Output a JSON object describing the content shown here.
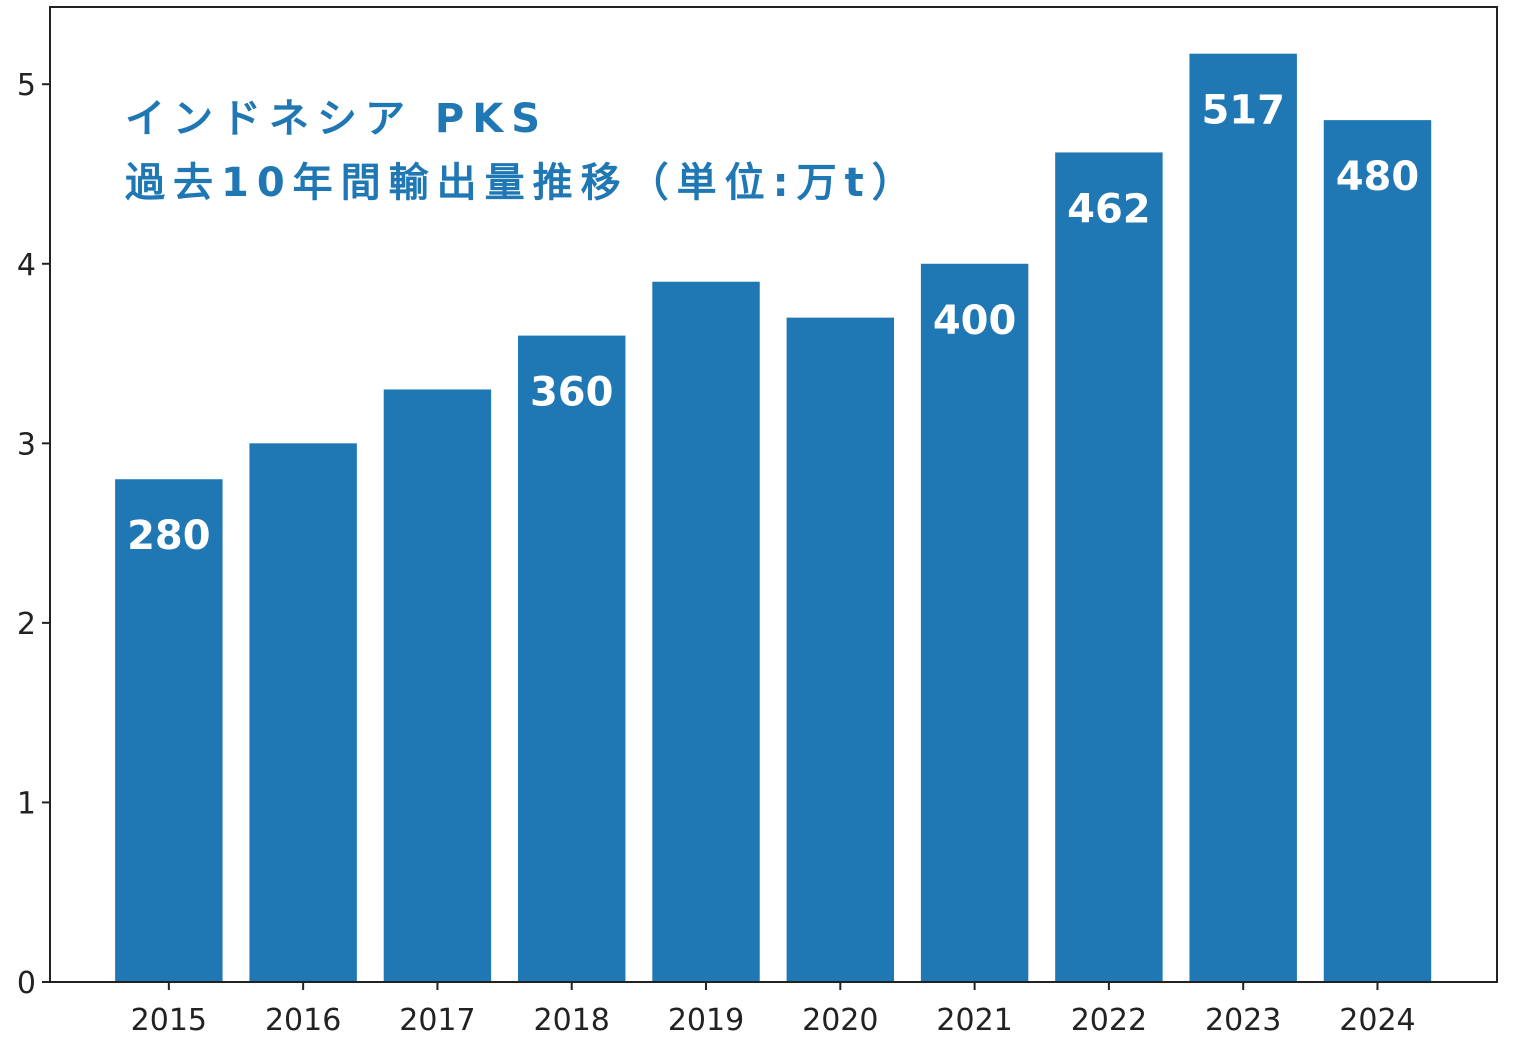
{
  "chart_data": {
    "type": "bar",
    "title_lines": [
      "インドネシア PKS",
      "過去10年間輸出量推移（単位:万t）"
    ],
    "categories": [
      "2015",
      "2016",
      "2017",
      "2018",
      "2019",
      "2020",
      "2021",
      "2022",
      "2023",
      "2024"
    ],
    "values": [
      2.8,
      3.0,
      3.3,
      3.6,
      3.9,
      3.7,
      4.0,
      4.62,
      5.17,
      4.8
    ],
    "data_labels": [
      "280",
      "",
      "",
      "360",
      "",
      "",
      "400",
      "462",
      "517",
      "480"
    ],
    "yticks": [
      "0",
      "1",
      "2",
      "3",
      "4",
      "5"
    ],
    "ylim": [
      0,
      5.43
    ],
    "xlabel": "",
    "ylabel": "",
    "grid": false,
    "bar_color": "#1f77b4",
    "title_color": "#1f77b4",
    "label_color": "#ffffff"
  }
}
